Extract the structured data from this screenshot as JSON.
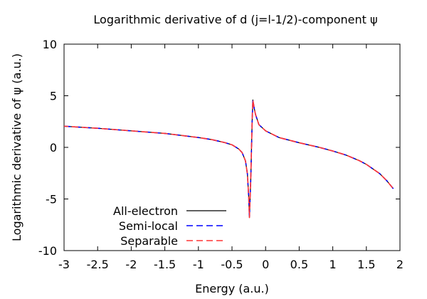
{
  "chart_data": {
    "type": "line",
    "title": "Logarithmic derivative of d (j=l-1/2)-component ψ",
    "xlabel": "Energy (a.u.)",
    "ylabel": "Logarithmic derivative of ψ (a.u.)",
    "xlim": [
      -3,
      2
    ],
    "ylim": [
      -10,
      10
    ],
    "x_ticks": [
      -3,
      -2.5,
      -2,
      -1.5,
      -1,
      -0.5,
      0,
      0.5,
      1,
      1.5,
      2
    ],
    "y_ticks": [
      -10,
      -5,
      0,
      5,
      10
    ],
    "x_tick_labels": [
      "-3",
      "-2.5",
      "-2",
      "-1.5",
      "-1",
      "-0.5",
      "0",
      "0.5",
      "1",
      "1.5",
      "2"
    ],
    "y_tick_labels": [
      "-10",
      "-5",
      "0",
      "5",
      "10"
    ],
    "grid": false,
    "legend_position": "bottom-left",
    "series": [
      {
        "name": "All-electron",
        "color": "#000000",
        "dash": "solid",
        "x": [
          -3.0,
          -2.5,
          -2.0,
          -1.5,
          -1.0,
          -0.8,
          -0.6,
          -0.5,
          -0.4,
          -0.35,
          -0.3,
          -0.27,
          -0.25,
          -0.24,
          -0.22,
          -0.2,
          -0.19,
          -0.17,
          -0.15,
          -0.1,
          0.0,
          0.2,
          0.5,
          0.8,
          1.0,
          1.2,
          1.4,
          1.5,
          1.6,
          1.7,
          1.8,
          1.9
        ],
        "y": [
          2.05,
          1.85,
          1.6,
          1.35,
          0.95,
          0.75,
          0.45,
          0.25,
          -0.15,
          -0.5,
          -1.3,
          -2.6,
          -5.0,
          -6.8,
          -3.0,
          2.5,
          4.6,
          3.8,
          3.2,
          2.2,
          1.6,
          0.95,
          0.45,
          0.0,
          -0.35,
          -0.75,
          -1.3,
          -1.65,
          -2.1,
          -2.55,
          -3.2,
          -4.0
        ]
      },
      {
        "name": "Semi-local",
        "color": "#0000ff",
        "dash": "dashed",
        "x": [
          -3.0,
          -2.5,
          -2.0,
          -1.5,
          -1.0,
          -0.8,
          -0.6,
          -0.5,
          -0.4,
          -0.35,
          -0.3,
          -0.27,
          -0.25,
          -0.24,
          -0.22,
          -0.2,
          -0.19,
          -0.17,
          -0.15,
          -0.1,
          0.0,
          0.2,
          0.5,
          0.8,
          1.0,
          1.2,
          1.4,
          1.5,
          1.6,
          1.7,
          1.8,
          1.9
        ],
        "y": [
          2.05,
          1.85,
          1.6,
          1.35,
          0.95,
          0.75,
          0.45,
          0.25,
          -0.15,
          -0.5,
          -1.3,
          -2.6,
          -5.0,
          -6.8,
          -3.0,
          2.5,
          4.6,
          3.8,
          3.2,
          2.2,
          1.6,
          0.95,
          0.45,
          0.0,
          -0.35,
          -0.75,
          -1.3,
          -1.65,
          -2.1,
          -2.55,
          -3.2,
          -4.0
        ]
      },
      {
        "name": "Separable",
        "color": "#ff3333",
        "dash": "dashed",
        "x": [
          -3.0,
          -2.5,
          -2.0,
          -1.5,
          -1.0,
          -0.8,
          -0.6,
          -0.5,
          -0.4,
          -0.35,
          -0.3,
          -0.27,
          -0.25,
          -0.24,
          -0.22,
          -0.2,
          -0.19,
          -0.17,
          -0.15,
          -0.1,
          0.0,
          0.2,
          0.5,
          0.8,
          1.0,
          1.2,
          1.4,
          1.5,
          1.6,
          1.7,
          1.8,
          1.9
        ],
        "y": [
          2.05,
          1.85,
          1.6,
          1.35,
          0.95,
          0.75,
          0.45,
          0.25,
          -0.15,
          -0.5,
          -1.3,
          -2.6,
          -5.0,
          -6.8,
          -3.0,
          2.5,
          4.6,
          3.8,
          3.2,
          2.2,
          1.6,
          0.95,
          0.45,
          0.0,
          -0.35,
          -0.75,
          -1.3,
          -1.65,
          -2.1,
          -2.55,
          -3.2,
          -4.0
        ]
      }
    ]
  }
}
